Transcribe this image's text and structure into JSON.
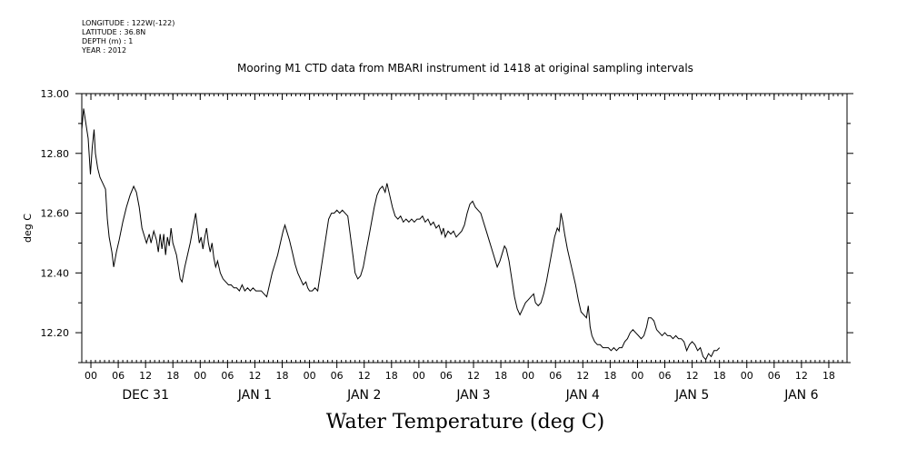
{
  "header": {
    "meta_lines": [
      "LONGITUDE : 122W(-122)",
      "LATITUDE : 36.8N",
      "DEPTH (m) : 1",
      "YEAR : 2012"
    ]
  },
  "chart_data": {
    "type": "line",
    "title": "Mooring M1 CTD data from MBARI instrument id 1418 at original sampling intervals",
    "bottom_title": "Water Temperature (deg C)",
    "ylabel": "deg C",
    "xlabel": "",
    "ylim": [
      12.1,
      13.0
    ],
    "y_ticks": [
      12.2,
      12.4,
      12.6,
      12.8,
      13.0
    ],
    "y_tick_labels": [
      "12.20",
      "12.40",
      "12.60",
      "12.80",
      "13.00"
    ],
    "x_unit": "hours from Dec 30 2012 22:00",
    "xlim": [
      0,
      168
    ],
    "hour_ticks": [
      {
        "t": 2,
        "label": "00"
      },
      {
        "t": 8,
        "label": "06"
      },
      {
        "t": 14,
        "label": "12"
      },
      {
        "t": 20,
        "label": "18"
      },
      {
        "t": 26,
        "label": "00"
      },
      {
        "t": 32,
        "label": "06"
      },
      {
        "t": 38,
        "label": "12"
      },
      {
        "t": 44,
        "label": "18"
      },
      {
        "t": 50,
        "label": "00"
      },
      {
        "t": 56,
        "label": "06"
      },
      {
        "t": 62,
        "label": "12"
      },
      {
        "t": 68,
        "label": "18"
      },
      {
        "t": 74,
        "label": "00"
      },
      {
        "t": 80,
        "label": "06"
      },
      {
        "t": 86,
        "label": "12"
      },
      {
        "t": 92,
        "label": "18"
      },
      {
        "t": 98,
        "label": "00"
      },
      {
        "t": 104,
        "label": "06"
      },
      {
        "t": 110,
        "label": "12"
      },
      {
        "t": 116,
        "label": "18"
      },
      {
        "t": 122,
        "label": "00"
      },
      {
        "t": 128,
        "label": "06"
      },
      {
        "t": 134,
        "label": "12"
      },
      {
        "t": 140,
        "label": "18"
      },
      {
        "t": 146,
        "label": "00"
      },
      {
        "t": 152,
        "label": "06"
      },
      {
        "t": 158,
        "label": "12"
      },
      {
        "t": 164,
        "label": "18"
      }
    ],
    "day_labels": [
      {
        "t": 14,
        "label": "DEC 31"
      },
      {
        "t": 38,
        "label": "JAN  1"
      },
      {
        "t": 62,
        "label": "JAN  2"
      },
      {
        "t": 86,
        "label": "JAN  3"
      },
      {
        "t": 110,
        "label": "JAN  4"
      },
      {
        "t": 134,
        "label": "JAN  5"
      },
      {
        "t": 158,
        "label": "JAN  6"
      }
    ],
    "series": [
      {
        "values": [
          [
            0.0,
            12.88
          ],
          [
            0.4,
            12.95
          ],
          [
            0.9,
            12.9
          ],
          [
            1.4,
            12.85
          ],
          [
            1.9,
            12.73
          ],
          [
            2.3,
            12.82
          ],
          [
            2.7,
            12.88
          ],
          [
            3.0,
            12.8
          ],
          [
            3.5,
            12.75
          ],
          [
            4.0,
            12.72
          ],
          [
            4.6,
            12.7
          ],
          [
            5.2,
            12.68
          ],
          [
            5.6,
            12.58
          ],
          [
            6.0,
            12.52
          ],
          [
            6.6,
            12.47
          ],
          [
            7.0,
            12.42
          ],
          [
            7.6,
            12.47
          ],
          [
            8.2,
            12.51
          ],
          [
            9.0,
            12.57
          ],
          [
            9.8,
            12.62
          ],
          [
            10.6,
            12.66
          ],
          [
            11.4,
            12.69
          ],
          [
            12.0,
            12.67
          ],
          [
            12.6,
            12.62
          ],
          [
            13.2,
            12.55
          ],
          [
            13.8,
            12.52
          ],
          [
            14.2,
            12.5
          ],
          [
            14.8,
            12.53
          ],
          [
            15.2,
            12.5
          ],
          [
            15.8,
            12.54
          ],
          [
            16.4,
            12.51
          ],
          [
            16.8,
            12.47
          ],
          [
            17.2,
            12.53
          ],
          [
            17.6,
            12.48
          ],
          [
            18.0,
            12.53
          ],
          [
            18.4,
            12.46
          ],
          [
            18.8,
            12.52
          ],
          [
            19.2,
            12.49
          ],
          [
            19.6,
            12.55
          ],
          [
            20.0,
            12.5
          ],
          [
            20.4,
            12.48
          ],
          [
            20.8,
            12.46
          ],
          [
            21.2,
            12.42
          ],
          [
            21.6,
            12.38
          ],
          [
            22.0,
            12.37
          ],
          [
            22.6,
            12.42
          ],
          [
            23.2,
            12.46
          ],
          [
            23.8,
            12.5
          ],
          [
            24.4,
            12.55
          ],
          [
            25.0,
            12.6
          ],
          [
            25.4,
            12.55
          ],
          [
            25.8,
            12.5
          ],
          [
            26.2,
            12.52
          ],
          [
            26.6,
            12.48
          ],
          [
            27.0,
            12.52
          ],
          [
            27.4,
            12.55
          ],
          [
            27.8,
            12.5
          ],
          [
            28.2,
            12.47
          ],
          [
            28.6,
            12.5
          ],
          [
            29.0,
            12.45
          ],
          [
            29.4,
            12.42
          ],
          [
            29.8,
            12.44
          ],
          [
            30.4,
            12.4
          ],
          [
            31.0,
            12.38
          ],
          [
            31.6,
            12.37
          ],
          [
            32.2,
            12.36
          ],
          [
            32.8,
            12.36
          ],
          [
            33.4,
            12.35
          ],
          [
            34.0,
            12.35
          ],
          [
            34.6,
            12.34
          ],
          [
            35.2,
            12.36
          ],
          [
            35.8,
            12.34
          ],
          [
            36.4,
            12.35
          ],
          [
            37.0,
            12.34
          ],
          [
            37.6,
            12.35
          ],
          [
            38.2,
            12.34
          ],
          [
            38.8,
            12.34
          ],
          [
            39.4,
            12.34
          ],
          [
            40.0,
            12.33
          ],
          [
            40.6,
            12.32
          ],
          [
            41.2,
            12.36
          ],
          [
            41.8,
            12.4
          ],
          [
            42.4,
            12.43
          ],
          [
            43.0,
            12.46
          ],
          [
            43.6,
            12.5
          ],
          [
            44.2,
            12.54
          ],
          [
            44.6,
            12.56
          ],
          [
            45.0,
            12.54
          ],
          [
            45.6,
            12.51
          ],
          [
            46.2,
            12.47
          ],
          [
            46.8,
            12.43
          ],
          [
            47.4,
            12.4
          ],
          [
            48.0,
            12.38
          ],
          [
            48.6,
            12.36
          ],
          [
            49.2,
            12.37
          ],
          [
            49.6,
            12.35
          ],
          [
            50.0,
            12.34
          ],
          [
            50.6,
            12.34
          ],
          [
            51.2,
            12.35
          ],
          [
            51.8,
            12.34
          ],
          [
            52.4,
            12.4
          ],
          [
            53.0,
            12.46
          ],
          [
            53.6,
            12.52
          ],
          [
            54.2,
            12.58
          ],
          [
            54.8,
            12.6
          ],
          [
            55.4,
            12.6
          ],
          [
            56.0,
            12.61
          ],
          [
            56.6,
            12.6
          ],
          [
            57.2,
            12.61
          ],
          [
            57.8,
            12.6
          ],
          [
            58.4,
            12.59
          ],
          [
            59.0,
            12.52
          ],
          [
            59.6,
            12.45
          ],
          [
            60.0,
            12.4
          ],
          [
            60.6,
            12.38
          ],
          [
            61.2,
            12.39
          ],
          [
            61.8,
            12.42
          ],
          [
            62.4,
            12.47
          ],
          [
            63.0,
            12.52
          ],
          [
            63.6,
            12.57
          ],
          [
            64.2,
            12.62
          ],
          [
            64.8,
            12.66
          ],
          [
            65.4,
            12.68
          ],
          [
            66.0,
            12.69
          ],
          [
            66.6,
            12.67
          ],
          [
            67.0,
            12.7
          ],
          [
            67.6,
            12.66
          ],
          [
            68.2,
            12.62
          ],
          [
            68.8,
            12.59
          ],
          [
            69.4,
            12.58
          ],
          [
            70.0,
            12.59
          ],
          [
            70.6,
            12.57
          ],
          [
            71.2,
            12.58
          ],
          [
            71.8,
            12.57
          ],
          [
            72.4,
            12.58
          ],
          [
            73.0,
            12.57
          ],
          [
            73.6,
            12.58
          ],
          [
            74.2,
            12.58
          ],
          [
            74.8,
            12.59
          ],
          [
            75.4,
            12.57
          ],
          [
            76.0,
            12.58
          ],
          [
            76.6,
            12.56
          ],
          [
            77.2,
            12.57
          ],
          [
            77.8,
            12.55
          ],
          [
            78.4,
            12.56
          ],
          [
            79.0,
            12.53
          ],
          [
            79.4,
            12.55
          ],
          [
            79.8,
            12.52
          ],
          [
            80.4,
            12.54
          ],
          [
            81.0,
            12.53
          ],
          [
            81.6,
            12.54
          ],
          [
            82.2,
            12.52
          ],
          [
            82.8,
            12.53
          ],
          [
            83.4,
            12.54
          ],
          [
            84.0,
            12.56
          ],
          [
            84.6,
            12.6
          ],
          [
            85.2,
            12.63
          ],
          [
            85.8,
            12.64
          ],
          [
            86.4,
            12.62
          ],
          [
            87.0,
            12.61
          ],
          [
            87.6,
            12.6
          ],
          [
            88.2,
            12.57
          ],
          [
            88.8,
            12.54
          ],
          [
            89.4,
            12.51
          ],
          [
            90.0,
            12.48
          ],
          [
            90.6,
            12.45
          ],
          [
            91.2,
            12.42
          ],
          [
            91.8,
            12.44
          ],
          [
            92.4,
            12.47
          ],
          [
            92.8,
            12.49
          ],
          [
            93.2,
            12.48
          ],
          [
            93.8,
            12.44
          ],
          [
            94.4,
            12.38
          ],
          [
            95.0,
            12.32
          ],
          [
            95.6,
            12.28
          ],
          [
            96.2,
            12.26
          ],
          [
            96.8,
            12.28
          ],
          [
            97.4,
            12.3
          ],
          [
            98.0,
            12.31
          ],
          [
            98.6,
            12.32
          ],
          [
            99.2,
            12.33
          ],
          [
            99.6,
            12.3
          ],
          [
            100.2,
            12.29
          ],
          [
            100.8,
            12.3
          ],
          [
            101.4,
            12.33
          ],
          [
            102.0,
            12.37
          ],
          [
            102.6,
            12.42
          ],
          [
            103.2,
            12.47
          ],
          [
            103.8,
            12.52
          ],
          [
            104.4,
            12.55
          ],
          [
            104.8,
            12.54
          ],
          [
            105.2,
            12.6
          ],
          [
            105.6,
            12.57
          ],
          [
            106.0,
            12.53
          ],
          [
            106.6,
            12.48
          ],
          [
            107.2,
            12.44
          ],
          [
            107.8,
            12.4
          ],
          [
            108.4,
            12.36
          ],
          [
            109.0,
            12.31
          ],
          [
            109.6,
            12.27
          ],
          [
            110.2,
            12.26
          ],
          [
            110.8,
            12.25
          ],
          [
            111.2,
            12.29
          ],
          [
            111.6,
            12.22
          ],
          [
            112.0,
            12.19
          ],
          [
            112.6,
            12.17
          ],
          [
            113.2,
            12.16
          ],
          [
            113.8,
            12.16
          ],
          [
            114.4,
            12.15
          ],
          [
            115.0,
            12.15
          ],
          [
            115.6,
            12.15
          ],
          [
            116.2,
            12.14
          ],
          [
            116.8,
            12.15
          ],
          [
            117.4,
            12.14
          ],
          [
            118.0,
            12.15
          ],
          [
            118.6,
            12.15
          ],
          [
            119.2,
            12.17
          ],
          [
            119.8,
            12.18
          ],
          [
            120.4,
            12.2
          ],
          [
            121.0,
            12.21
          ],
          [
            121.6,
            12.2
          ],
          [
            122.2,
            12.19
          ],
          [
            122.8,
            12.18
          ],
          [
            123.4,
            12.19
          ],
          [
            124.0,
            12.22
          ],
          [
            124.4,
            12.25
          ],
          [
            125.0,
            12.25
          ],
          [
            125.6,
            12.24
          ],
          [
            126.2,
            12.21
          ],
          [
            126.8,
            12.2
          ],
          [
            127.4,
            12.19
          ],
          [
            128.0,
            12.2
          ],
          [
            128.6,
            12.19
          ],
          [
            129.2,
            12.19
          ],
          [
            129.8,
            12.18
          ],
          [
            130.4,
            12.19
          ],
          [
            131.0,
            12.18
          ],
          [
            131.6,
            12.18
          ],
          [
            132.2,
            12.17
          ],
          [
            132.8,
            12.14
          ],
          [
            133.4,
            12.16
          ],
          [
            134.0,
            12.17
          ],
          [
            134.6,
            12.16
          ],
          [
            135.2,
            12.14
          ],
          [
            135.8,
            12.15
          ],
          [
            136.4,
            12.12
          ],
          [
            137.0,
            12.11
          ],
          [
            137.6,
            12.13
          ],
          [
            138.2,
            12.12
          ],
          [
            138.8,
            12.14
          ],
          [
            139.4,
            12.14
          ],
          [
            140.0,
            12.15
          ]
        ]
      }
    ]
  }
}
